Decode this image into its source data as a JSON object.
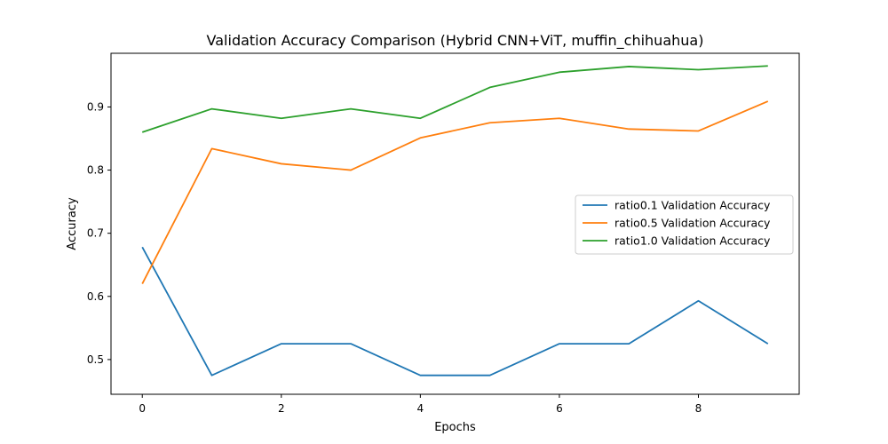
{
  "chart_data": {
    "type": "line",
    "title": "Validation Accuracy Comparison (Hybrid CNN+ViT, muffin_chihuahua)",
    "xlabel": "Epochs",
    "ylabel": "Accuracy",
    "x": [
      0,
      1,
      2,
      3,
      4,
      5,
      6,
      7,
      8,
      9
    ],
    "xlim": [
      -0.45,
      9.45
    ],
    "ylim": [
      0.445,
      0.985
    ],
    "xticks": [
      0,
      2,
      4,
      6,
      8
    ],
    "yticks": [
      0.5,
      0.6,
      0.7,
      0.8,
      0.9
    ],
    "ytick_labels": [
      "0.5",
      "0.6",
      "0.7",
      "0.8",
      "0.9"
    ],
    "grid": false,
    "legend_position": "center-right",
    "series": [
      {
        "name": "ratio0.1 Validation Accuracy",
        "color": "#1f77b4",
        "values": [
          0.678,
          0.475,
          0.525,
          0.525,
          0.475,
          0.475,
          0.525,
          0.525,
          0.593,
          0.525
        ]
      },
      {
        "name": "ratio0.5 Validation Accuracy",
        "color": "#ff7f0e",
        "values": [
          0.62,
          0.834,
          0.81,
          0.8,
          0.851,
          0.875,
          0.882,
          0.865,
          0.862,
          0.909
        ]
      },
      {
        "name": "ratio1.0 Validation Accuracy",
        "color": "#2ca02c",
        "values": [
          0.86,
          0.897,
          0.882,
          0.897,
          0.882,
          0.931,
          0.955,
          0.964,
          0.959,
          0.965
        ]
      }
    ]
  }
}
